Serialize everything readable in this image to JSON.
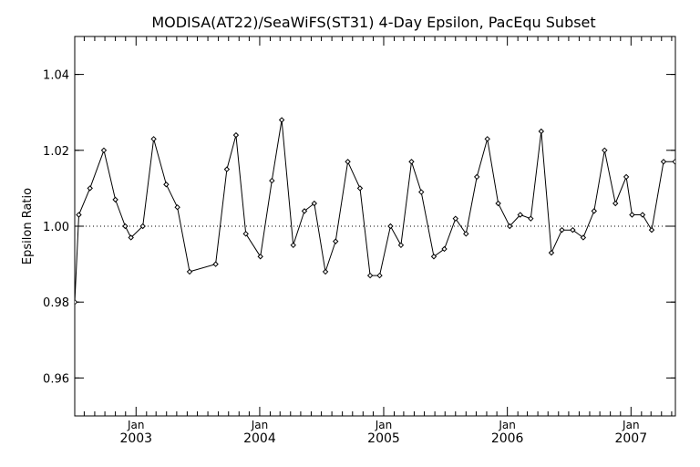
{
  "chart_data": {
    "type": "line",
    "title": "MODISA(AT22)/SeaWiFS(ST31) 4-Day Epsilon, PacEqu Subset",
    "xlabel": "",
    "ylabel": "Epsilon Ratio",
    "xlim": [
      "2002-07-04",
      "2007-05-12"
    ],
    "ylim": [
      0.95,
      1.05
    ],
    "yticks": [
      0.96,
      0.98,
      1.0,
      1.02,
      1.04
    ],
    "ytick_labels": [
      "0.96",
      "0.98",
      "1.00",
      "1.02",
      "1.04"
    ],
    "xticks": [
      {
        "date": "2003-01-01",
        "month": "Jan",
        "year": "2003"
      },
      {
        "date": "2004-01-01",
        "month": "Jan",
        "year": "2004"
      },
      {
        "date": "2005-01-01",
        "month": "Jan",
        "year": "2005"
      },
      {
        "date": "2006-01-01",
        "month": "Jan",
        "year": "2006"
      },
      {
        "date": "2007-01-01",
        "month": "Jan",
        "year": "2007"
      }
    ],
    "reference_line": {
      "y": 1.0,
      "style": "dotted"
    },
    "grid": false,
    "legend": "none",
    "series": [
      {
        "x": [
          "2002-07-04",
          "2002-07-16",
          "2002-08-18",
          "2002-09-28",
          "2002-11-01",
          "2002-11-30",
          "2002-12-17",
          "2003-01-21",
          "2003-02-22",
          "2003-03-31",
          "2003-05-03",
          "2003-06-08",
          "2003-08-24",
          "2003-09-26",
          "2003-10-23",
          "2003-11-21",
          "2004-01-03",
          "2004-02-06",
          "2004-03-06",
          "2004-04-09",
          "2004-05-12",
          "2004-06-10",
          "2004-07-13",
          "2004-08-12",
          "2004-09-17",
          "2004-10-23",
          "2004-11-22",
          "2004-12-20",
          "2005-01-21",
          "2005-02-21",
          "2005-03-24",
          "2005-04-22",
          "2005-05-29",
          "2005-06-29",
          "2005-08-01",
          "2005-09-01",
          "2005-10-03",
          "2005-11-03",
          "2005-12-05",
          "2006-01-08",
          "2006-02-08",
          "2006-03-11",
          "2006-04-11",
          "2006-05-11",
          "2006-06-11",
          "2006-07-13",
          "2006-08-13",
          "2006-09-14",
          "2006-10-15",
          "2006-11-16",
          "2006-12-18",
          "2007-01-04",
          "2007-02-04",
          "2007-03-03",
          "2007-04-07",
          "2007-05-11"
        ],
        "y": [
          0.98,
          1.003,
          1.01,
          1.02,
          1.007,
          1.0,
          0.997,
          1.0,
          1.023,
          1.011,
          1.005,
          0.988,
          0.99,
          1.015,
          1.024,
          0.998,
          0.992,
          1.012,
          1.028,
          0.995,
          1.004,
          1.006,
          0.988,
          0.996,
          1.017,
          1.01,
          0.987,
          0.987,
          1.0,
          0.995,
          1.017,
          1.009,
          0.992,
          0.994,
          1.002,
          0.998,
          1.013,
          1.023,
          1.006,
          1.0,
          1.003,
          1.002,
          1.025,
          0.993,
          0.999,
          0.999,
          0.997,
          1.004,
          1.02,
          1.006,
          1.013,
          1.003,
          1.003,
          0.999,
          1.017,
          1.017
        ]
      }
    ]
  }
}
